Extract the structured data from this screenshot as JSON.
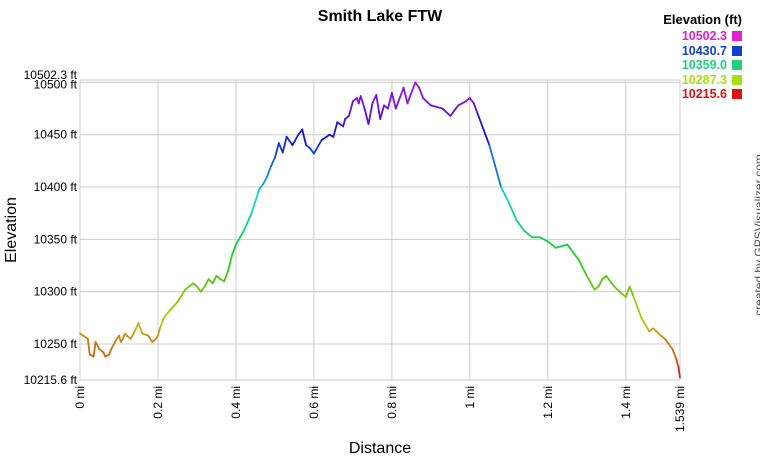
{
  "chart_data": {
    "type": "line",
    "title": "Smith Lake FTW",
    "xlabel": "Distance",
    "ylabel": "Elevation",
    "xlim": [
      0,
      1.539
    ],
    "ylim": [
      10215.6,
      10502.3
    ],
    "x_ticks": [
      {
        "value": 0,
        "label": "0 mi"
      },
      {
        "value": 0.2,
        "label": "0.2 mi"
      },
      {
        "value": 0.4,
        "label": "0.4 mi"
      },
      {
        "value": 0.6,
        "label": "0.6 mi"
      },
      {
        "value": 0.8,
        "label": "0.8 mi"
      },
      {
        "value": 1.0,
        "label": "1 mi"
      },
      {
        "value": 1.2,
        "label": "1.2 mi"
      },
      {
        "value": 1.4,
        "label": "1.4 mi"
      },
      {
        "value": 1.539,
        "label": "1.539 mi"
      }
    ],
    "y_ticks": [
      {
        "value": 10215.6,
        "label": "10215.6 ft"
      },
      {
        "value": 10250,
        "label": "10250 ft"
      },
      {
        "value": 10300,
        "label": "10300 ft"
      },
      {
        "value": 10350,
        "label": "10350 ft"
      },
      {
        "value": 10400,
        "label": "10400 ft"
      },
      {
        "value": 10450,
        "label": "10450 ft"
      },
      {
        "value": 10500,
        "label": "10500 ft"
      },
      {
        "value": 10502.3,
        "label": "10502.3 ft"
      }
    ],
    "grid": true,
    "legend": {
      "title": "Elevation (ft)",
      "placement": "top-right",
      "entries": [
        {
          "label": "10502.3",
          "color": "#e020d0"
        },
        {
          "label": "10430.7",
          "color": "#1040d0"
        },
        {
          "label": "10359.0",
          "color": "#20d080"
        },
        {
          "label": "10287.3",
          "color": "#a8e010"
        },
        {
          "label": "10215.6",
          "color": "#e01010"
        }
      ]
    },
    "series": [
      {
        "x": [
          0,
          0.02,
          0.025,
          0.035,
          0.04,
          0.05,
          0.06,
          0.065,
          0.075,
          0.08,
          0.09,
          0.1,
          0.105,
          0.11,
          0.115,
          0.12,
          0.13,
          0.14,
          0.15,
          0.16,
          0.175,
          0.185,
          0.195,
          0.2,
          0.205,
          0.215,
          0.23,
          0.25,
          0.27,
          0.29,
          0.3,
          0.31,
          0.32,
          0.33,
          0.34,
          0.35,
          0.36,
          0.37,
          0.38,
          0.39,
          0.4,
          0.42,
          0.44,
          0.46,
          0.47,
          0.48,
          0.49,
          0.5,
          0.51,
          0.52,
          0.53,
          0.545,
          0.56,
          0.57,
          0.58,
          0.59,
          0.6,
          0.62,
          0.64,
          0.65,
          0.66,
          0.675,
          0.68,
          0.69,
          0.7,
          0.71,
          0.715,
          0.72,
          0.73,
          0.74,
          0.75,
          0.76,
          0.77,
          0.78,
          0.79,
          0.8,
          0.81,
          0.82,
          0.83,
          0.84,
          0.85,
          0.86,
          0.87,
          0.88,
          0.9,
          0.93,
          0.95,
          0.97,
          0.99,
          1.0,
          1.01,
          1.02,
          1.05,
          1.08,
          1.1,
          1.12,
          1.14,
          1.16,
          1.18,
          1.2,
          1.22,
          1.25,
          1.28,
          1.3,
          1.32,
          1.33,
          1.34,
          1.35,
          1.37,
          1.39,
          1.4,
          1.41,
          1.42,
          1.44,
          1.46,
          1.47,
          1.49,
          1.5,
          1.52,
          1.53,
          1.535,
          1.539
        ],
        "y": [
          10260,
          10255,
          10240,
          10238,
          10252,
          10245,
          10242,
          10238,
          10240,
          10245,
          10252,
          10258,
          10252,
          10255,
          10260,
          10258,
          10255,
          10262,
          10270,
          10260,
          10258,
          10252,
          10255,
          10258,
          10265,
          10275,
          10282,
          10290,
          10302,
          10308,
          10305,
          10300,
          10305,
          10312,
          10308,
          10315,
          10312,
          10310,
          10320,
          10335,
          10345,
          10358,
          10375,
          10398,
          10403,
          10410,
          10420,
          10428,
          10442,
          10433,
          10448,
          10440,
          10450,
          10455,
          10440,
          10437,
          10432,
          10445,
          10450,
          10448,
          10462,
          10458,
          10465,
          10468,
          10482,
          10485,
          10480,
          10487,
          10475,
          10460,
          10480,
          10488,
          10465,
          10478,
          10475,
          10490,
          10475,
          10485,
          10495,
          10480,
          10490,
          10500,
          10495,
          10485,
          10478,
          10475,
          10468,
          10478,
          10482,
          10485,
          10480,
          10470,
          10440,
          10400,
          10385,
          10368,
          10358,
          10352,
          10352,
          10348,
          10342,
          10345,
          10330,
          10315,
          10302,
          10305,
          10312,
          10315,
          10305,
          10298,
          10295,
          10305,
          10295,
          10275,
          10262,
          10265,
          10258,
          10255,
          10245,
          10235,
          10228,
          10218
        ]
      }
    ],
    "credit": "created by GPSVisualizer.com"
  }
}
